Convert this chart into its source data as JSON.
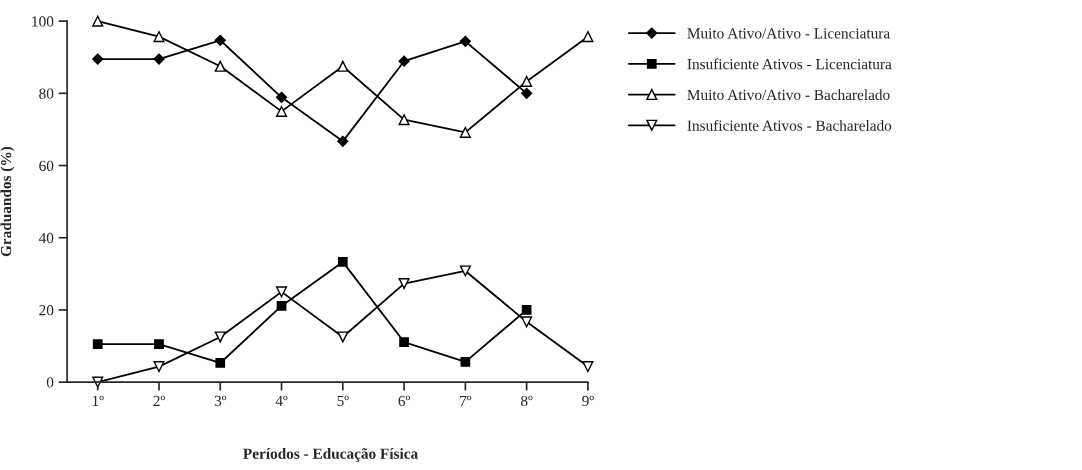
{
  "chart_data": {
    "type": "line",
    "xlabel": "Períodos - Educação Física",
    "ylabel": "Graduandos (%)",
    "categories": [
      "1º",
      "2º",
      "3º",
      "4º",
      "5º",
      "6º",
      "7º",
      "8º",
      "9º"
    ],
    "series": [
      {
        "name": "Muito Ativo/Ativo - Licenciatura",
        "color": "#000000",
        "marker": "diamond",
        "values": [
          89.5,
          89.5,
          94.7,
          78.9,
          66.7,
          88.9,
          94.4,
          80,
          null
        ]
      },
      {
        "name": "Insuficiente Ativos - Licenciatura",
        "color": "#000000",
        "marker": "square",
        "values": [
          10.5,
          10.5,
          5.3,
          21.1,
          33.3,
          11.1,
          5.6,
          20,
          null
        ]
      },
      {
        "name": "Muito Ativo/Ativo - Bacharelado",
        "color": "#000000",
        "marker": "triangle",
        "values": [
          100,
          95.7,
          87.5,
          75,
          87.5,
          72.7,
          69.2,
          83.3,
          95.7
        ]
      },
      {
        "name": "Insuficiente Ativos - Bacharelado",
        "color": "#000000",
        "marker": "triangle_down",
        "values": [
          0,
          4.3,
          12.5,
          25,
          12.5,
          27.3,
          30.8,
          16.7,
          4.3
        ]
      }
    ],
    "ylim": [
      0,
      100
    ],
    "yticks": [
      0,
      20,
      40,
      60,
      80,
      100
    ],
    "grid": false,
    "legend": "right",
    "line_style": "solid"
  }
}
